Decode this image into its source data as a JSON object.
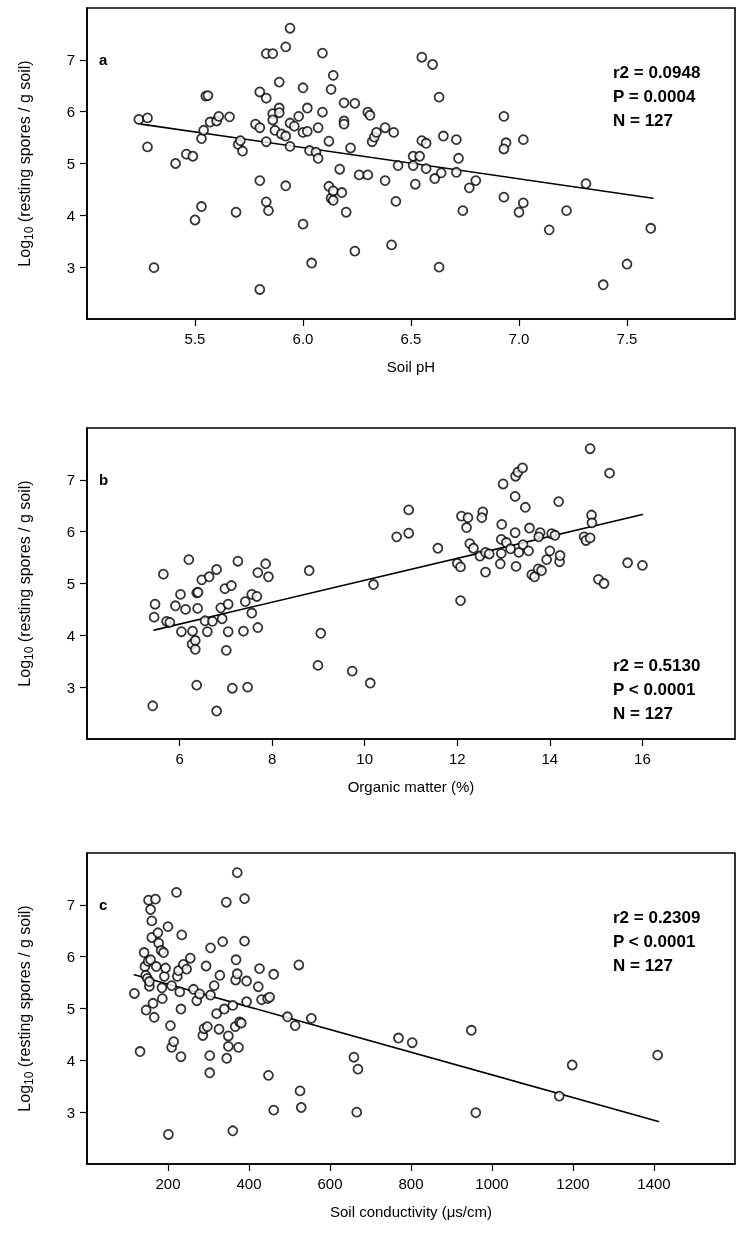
{
  "chart_data": [
    {
      "type": "scatter",
      "xlabel": "Soil pH",
      "ylabel": "Log$_{10}$ (resting spores / g soil)",
      "xlim": [
        5.0,
        8.0
      ],
      "xticks": [
        5.5,
        {
          "value": 6,
          "label": "6.0"
        },
        6.5,
        {
          "value": 7,
          "label": "7.0"
        },
        7.5
      ],
      "ylim": [
        2,
        8
      ],
      "yticks": [
        3,
        4,
        5,
        6,
        7
      ],
      "grid": false,
      "annotations": [
        "a",
        "r2 = 0.0948",
        "P = 0.0004",
        "N = 127"
      ],
      "series": [
        {
          "marker": "circle",
          "color": "#000000",
          "x": [
            5.24,
            5.28,
            5.28,
            5.31,
            5.41,
            5.46,
            5.49,
            5.5,
            5.53,
            5.53,
            5.54,
            5.55,
            5.56,
            5.57,
            5.6,
            5.61,
            5.66,
            5.69,
            5.7,
            5.71,
            5.72,
            5.78,
            5.8,
            5.8,
            5.8,
            5.8,
            5.83,
            5.83,
            5.83,
            5.84,
            5.83,
            5.86,
            5.86,
            5.86,
            5.87,
            5.89,
            5.89,
            5.89,
            5.9,
            5.92,
            5.92,
            5.92,
            5.94,
            5.94,
            5.94,
            5.96,
            5.98,
            6.0,
            6.0,
            6.0,
            6.02,
            6.02,
            6.03,
            6.04,
            6.06,
            6.07,
            6.07,
            6.09,
            6.09,
            6.12,
            6.13,
            6.14,
            6.12,
            6.13,
            6.14,
            6.14,
            6.17,
            6.18,
            6.19,
            6.19,
            6.19,
            6.2,
            6.22,
            6.24,
            6.24,
            6.26,
            6.3,
            6.3,
            6.31,
            6.32,
            6.33,
            6.34,
            6.38,
            6.38,
            6.41,
            6.42,
            6.43,
            6.44,
            6.51,
            6.51,
            6.52,
            6.54,
            6.55,
            6.55,
            6.57,
            6.57,
            6.6,
            6.61,
            6.63,
            6.63,
            6.64,
            6.65,
            6.71,
            6.71,
            6.72,
            6.74,
            6.77,
            6.8,
            6.93,
            6.94,
            6.93,
            6.93,
            7.0,
            7.02,
            7.02,
            7.14,
            7.22,
            7.31,
            7.39,
            7.5,
            7.61
          ],
          "values": [
            5.85,
            5.88,
            5.32,
            2.99,
            5.0,
            5.18,
            5.14,
            3.91,
            4.17,
            5.48,
            5.64,
            6.3,
            6.31,
            5.8,
            5.82,
            5.91,
            5.9,
            4.06,
            5.37,
            5.44,
            5.24,
            5.76,
            5.69,
            6.38,
            4.67,
            2.57,
            4.26,
            6.26,
            5.42,
            4.09,
            7.12,
            7.12,
            5.96,
            5.84,
            5.64,
            6.57,
            6.07,
            5.98,
            5.57,
            5.53,
            7.25,
            4.57,
            7.61,
            5.33,
            5.78,
            5.72,
            5.91,
            6.46,
            3.83,
            5.6,
            6.07,
            5.62,
            5.25,
            3.08,
            5.22,
            5.69,
            5.1,
            5.99,
            7.13,
            5.43,
            6.43,
            6.7,
            4.56,
            4.33,
            4.47,
            4.29,
            4.89,
            4.44,
            5.82,
            6.17,
            5.76,
            4.06,
            5.3,
            3.31,
            6.16,
            4.78,
            4.78,
            5.99,
            5.93,
            5.42,
            5.51,
            5.6,
            4.67,
            5.69,
            3.43,
            5.6,
            4.27,
            4.96,
            5.14,
            4.96,
            4.6,
            5.14,
            7.05,
            5.44,
            5.39,
            4.9,
            6.91,
            4.71,
            6.28,
            3.0,
            4.82,
            5.53,
            5.46,
            4.83,
            5.1,
            4.09,
            4.53,
            4.67,
            5.91,
            5.4,
            5.28,
            4.35,
            4.06,
            5.46,
            4.24,
            3.72,
            4.09,
            4.61,
            2.66,
            3.06,
            3.75
          ]
        },
        {
          "type": "line",
          "marker": "none",
          "line_style": "solid",
          "color": "#000000",
          "x": [
            5.25,
            7.62
          ],
          "values": [
            5.76,
            4.33
          ]
        }
      ]
    },
    {
      "type": "scatter",
      "xlabel": "Organic matter (%)",
      "ylabel": "Log$_{10}$ (resting spores / g soil)",
      "xlim": [
        4,
        18
      ],
      "xticks": [
        6,
        8,
        10,
        12,
        14,
        16
      ],
      "ylim": [
        2,
        8
      ],
      "yticks": [
        3,
        4,
        5,
        6,
        7
      ],
      "grid": false,
      "annotations": [
        "b",
        "r2 = 0.5130",
        "P < 0.0001",
        "N = 127"
      ],
      "series": [
        {
          "marker": "circle",
          "color": "#000000",
          "x": [
            5.42,
            5.47,
            5.45,
            5.65,
            5.72,
            5.79,
            5.91,
            6.02,
            6.04,
            6.13,
            6.2,
            6.28,
            6.27,
            6.34,
            6.34,
            6.37,
            6.39,
            6.37,
            6.4,
            6.48,
            6.55,
            6.6,
            6.64,
            6.71,
            6.8,
            6.8,
            6.89,
            6.92,
            6.98,
            7.05,
            7.05,
            7.01,
            7.12,
            7.14,
            7.26,
            7.38,
            7.42,
            7.47,
            7.56,
            7.56,
            7.67,
            7.69,
            7.69,
            7.86,
            7.92,
            8.8,
            8.99,
            9.05,
            9.73,
            10.12,
            10.19,
            10.69,
            10.95,
            10.95,
            11.58,
            12.0,
            12.07,
            12.07,
            12.09,
            12.2,
            12.23,
            12.27,
            12.35,
            12.49,
            12.55,
            12.53,
            12.61,
            12.61,
            12.69,
            12.96,
            12.95,
            12.95,
            12.93,
            12.99,
            13.06,
            13.15,
            13.26,
            13.25,
            13.27,
            13.31,
            13.33,
            13.25,
            13.41,
            13.47,
            13.42,
            13.54,
            13.56,
            13.61,
            13.67,
            13.75,
            13.79,
            13.82,
            13.76,
            13.93,
            14.0,
            14.04,
            14.11,
            14.19,
            14.21,
            14.22,
            14.74,
            14.78,
            14.87,
            14.9,
            14.91,
            14.87,
            15.05,
            15.17,
            15.29,
            15.68,
            16.0
          ],
          "values": [
            2.64,
            4.6,
            4.35,
            5.18,
            4.27,
            4.25,
            4.57,
            4.79,
            4.07,
            4.5,
            5.46,
            4.08,
            3.83,
            3.9,
            3.73,
            4.82,
            4.52,
            3.04,
            4.83,
            5.07,
            4.28,
            4.07,
            5.13,
            4.27,
            5.27,
            2.54,
            4.53,
            4.32,
            4.9,
            4.07,
            4.6,
            3.71,
            4.96,
            2.98,
            5.43,
            4.08,
            4.65,
            3.0,
            4.43,
            4.79,
            4.75,
            4.15,
            5.21,
            5.38,
            5.13,
            5.25,
            3.42,
            4.04,
            3.31,
            3.08,
            4.98,
            5.9,
            6.42,
            5.97,
            5.68,
            5.39,
            5.32,
            4.67,
            6.3,
            6.08,
            6.27,
            5.77,
            5.68,
            5.53,
            6.38,
            6.27,
            5.22,
            5.6,
            5.57,
            6.14,
            5.85,
            5.58,
            5.38,
            6.92,
            5.79,
            5.67,
            7.07,
            6.68,
            5.33,
            7.15,
            5.6,
            5.98,
            7.23,
            6.47,
            5.75,
            5.63,
            6.07,
            5.17,
            5.13,
            5.28,
            5.98,
            5.25,
            5.9,
            5.46,
            5.63,
            5.96,
            5.93,
            6.58,
            5.42,
            5.54,
            5.9,
            5.83,
            5.88,
            6.32,
            6.17,
            7.6,
            5.08,
            5.0,
            7.13,
            5.4,
            5.35
          ]
        },
        {
          "type": "line",
          "marker": "none",
          "line_style": "solid",
          "color": "#000000",
          "x": [
            5.45,
            16.0
          ],
          "values": [
            4.1,
            6.33
          ]
        }
      ]
    },
    {
      "type": "scatter",
      "xlabel": "Soil conductivity (μs/cm)",
      "ylabel": "Log$_{10}$ (resting spores / g soil)",
      "xlim": [
        0,
        1600
      ],
      "xticks": [
        200,
        400,
        600,
        800,
        1000,
        1200,
        1400
      ],
      "ylim": [
        2,
        8
      ],
      "yticks": [
        3,
        4,
        5,
        6,
        7
      ],
      "grid": false,
      "annotations": [
        "c",
        "r2 = 0.2309",
        "P < 0.0001",
        "N = 127"
      ],
      "series": [
        {
          "marker": "circle",
          "color": "#000000",
          "x": [
            117,
            131,
            141,
            143,
            145,
            149,
            146,
            151,
            154,
            157,
            152,
            169,
            160,
            160,
            157,
            163,
            166,
            154,
            171,
            175,
            177,
            183,
            185,
            186,
            189,
            191,
            194,
            200,
            201,
            206,
            209,
            209,
            214,
            221,
            223,
            226,
            229,
            232,
            232,
            234,
            238,
            246,
            255,
            263,
            271,
            278,
            294,
            286,
            289,
            297,
            303,
            303,
            305,
            305,
            314,
            320,
            326,
            328,
            335,
            339,
            344,
            345,
            349,
            349,
            360,
            366,
            368,
            371,
            367,
            371,
            377,
            374,
            381,
            389,
            389,
            394,
            394,
            360,
            426,
            423,
            431,
            446,
            448,
            451,
            461,
            461,
            495,
            514,
            523,
            526,
            529,
            554,
            659,
            669,
            666,
            769,
            803,
            949,
            960,
            1166,
            1198,
            1409
          ],
          "values": [
            5.29,
            4.17,
            6.08,
            5.81,
            5.64,
            5.58,
            4.97,
            5.91,
            5.43,
            6.91,
            7.09,
            7.11,
            6.69,
            6.37,
            5.94,
            5.1,
            4.83,
            5.52,
            5.81,
            6.46,
            6.26,
            6.12,
            5.4,
            5.19,
            6.08,
            5.62,
            5.78,
            6.58,
            2.57,
            4.67,
            5.44,
            4.25,
            4.36,
            7.24,
            5.62,
            5.73,
            5.32,
            4.99,
            4.07,
            6.42,
            5.85,
            5.76,
            5.97,
            5.37,
            5.15,
            5.28,
            5.82,
            4.48,
            4.61,
            4.65,
            4.09,
            3.76,
            6.17,
            5.26,
            5.44,
            4.9,
            4.6,
            5.64,
            6.29,
            4.99,
            7.05,
            4.04,
            4.47,
            4.27,
            5.06,
            4.65,
            5.94,
            7.62,
            5.55,
            5.67,
            4.74,
            4.25,
            4.72,
            7.12,
            6.3,
            5.53,
            5.13,
            2.64,
            5.77,
            5.42,
            5.17,
            5.19,
            3.71,
            5.22,
            5.66,
            3.04,
            4.84,
            4.67,
            5.84,
            3.41,
            3.09,
            4.81,
            4.06,
            3.83,
            3.0,
            4.43,
            4.34,
            4.58,
            2.99,
            3.31,
            3.91,
            4.1
          ]
        },
        {
          "type": "line",
          "marker": "none",
          "line_style": "solid",
          "color": "#000000",
          "x": [
            117,
            1411
          ],
          "values": [
            5.65,
            2.82
          ]
        }
      ]
    }
  ]
}
